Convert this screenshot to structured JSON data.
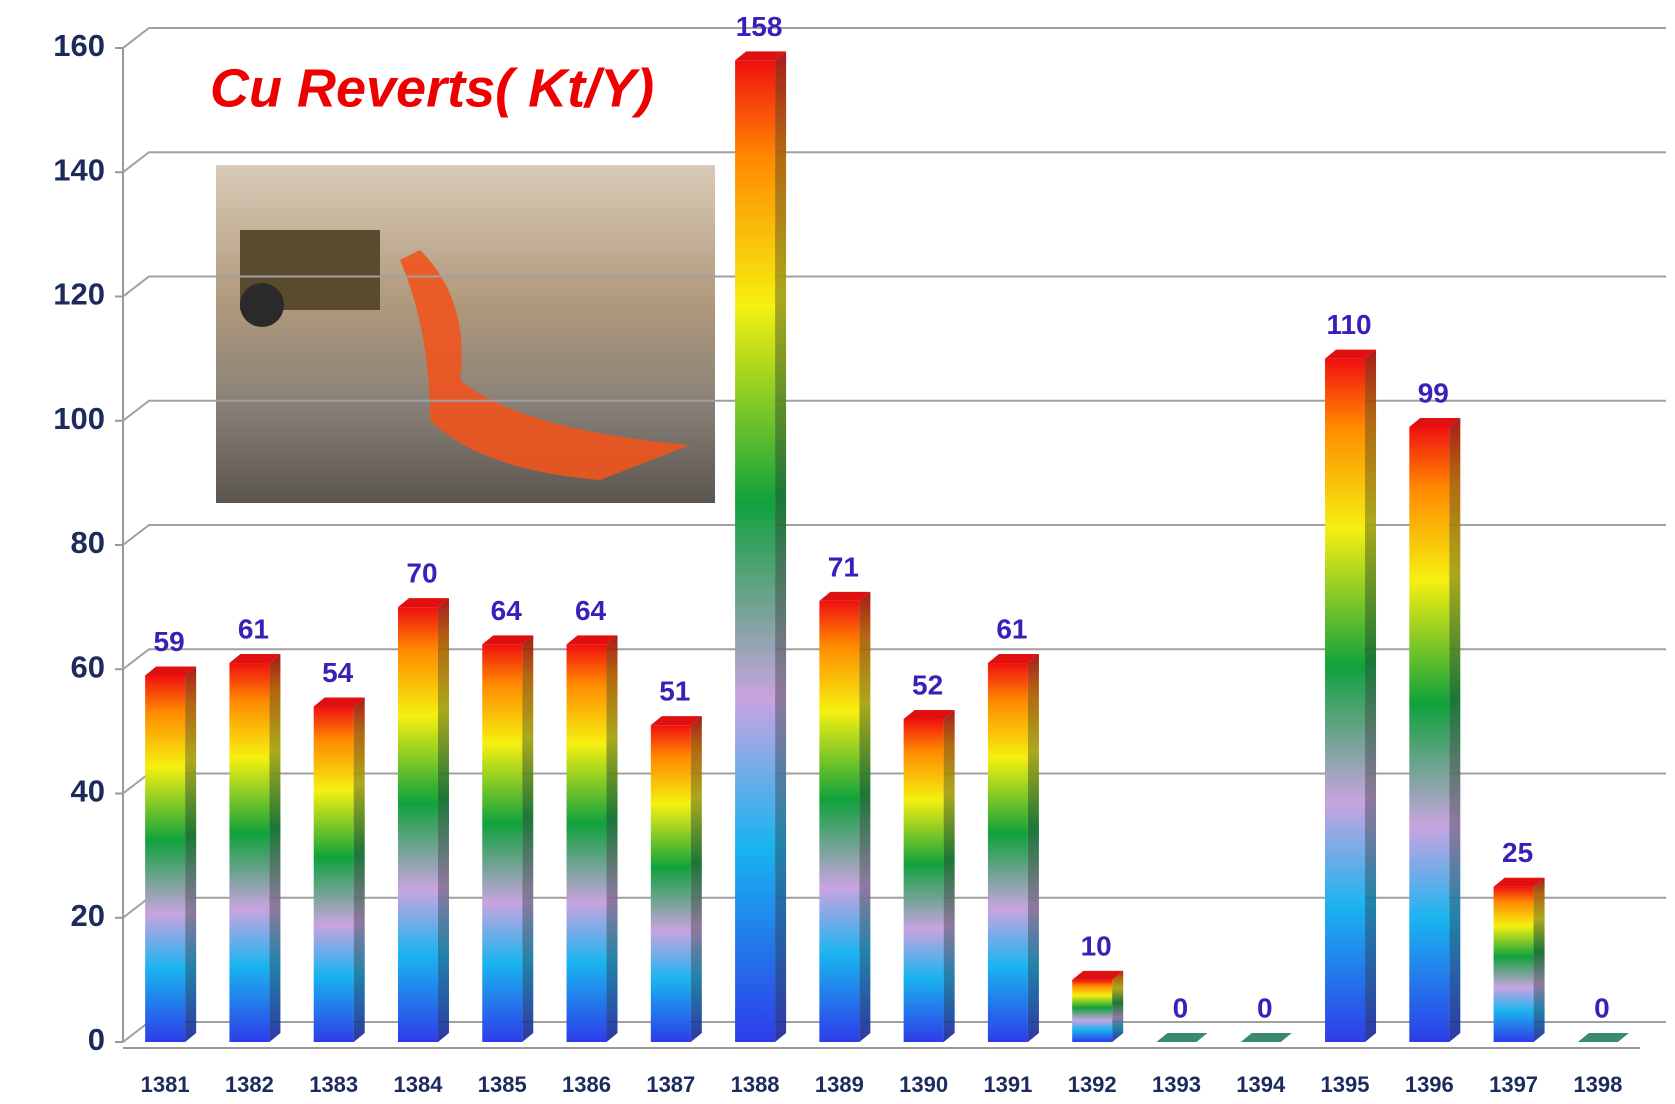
{
  "chart_data": {
    "type": "bar",
    "title": "Cu Reverts( Kt/Y)",
    "categories": [
      "1381",
      "1382",
      "1383",
      "1384",
      "1385",
      "1386",
      "1387",
      "1388",
      "1389",
      "1390",
      "1391",
      "1392",
      "1393",
      "1394",
      "1395",
      "1396",
      "1397",
      "1398"
    ],
    "values": [
      59,
      61,
      54,
      70,
      64,
      64,
      51,
      158,
      71,
      52,
      61,
      10,
      0,
      0,
      110,
      99,
      25,
      0
    ],
    "ylim": [
      0,
      160
    ],
    "yticks": [
      0,
      20,
      40,
      60,
      80,
      100,
      120,
      140,
      160
    ],
    "grid": true
  }
}
